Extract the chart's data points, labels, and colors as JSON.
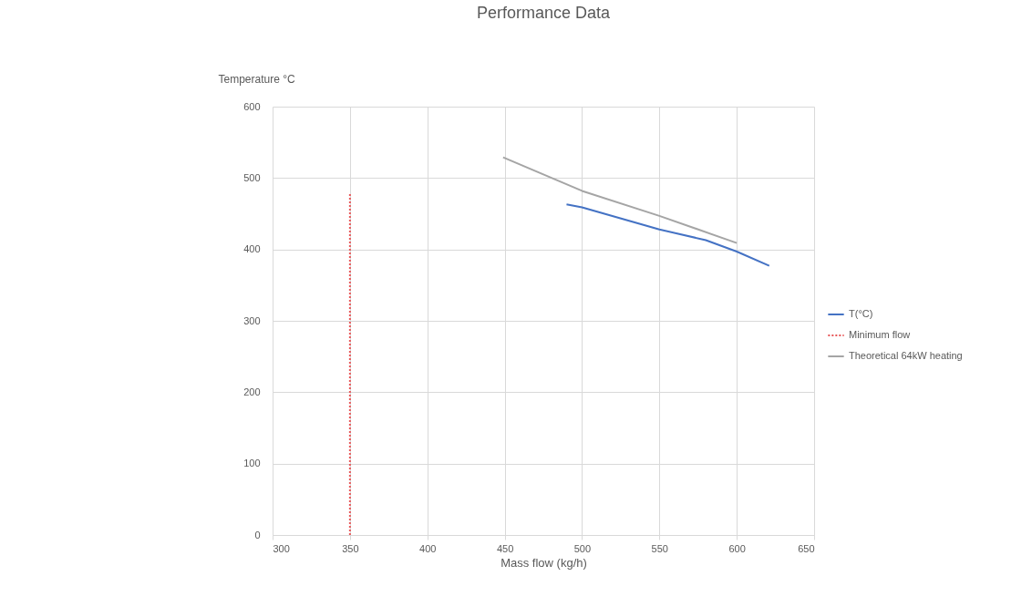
{
  "chart_data": {
    "type": "line",
    "title": "Performance Data",
    "xlabel": "Mass flow (kg/h)",
    "ylabel": "Temperature °C",
    "xlim": [
      300,
      650
    ],
    "xticks": [
      300,
      350,
      400,
      450,
      500,
      550,
      600,
      650
    ],
    "ylim": [
      0,
      600
    ],
    "yticks": [
      0,
      100,
      200,
      300,
      400,
      500,
      600
    ],
    "grid": true,
    "legend": "right",
    "marker": "none",
    "series": [
      {
        "name": "T(°C)",
        "color": "#4472c4",
        "x": [
          490,
          500,
          550,
          580,
          600,
          621
        ],
        "values": [
          463,
          459,
          428,
          413,
          397,
          377
        ]
      },
      {
        "name": "Minimum flow",
        "color": "#e8585a",
        "line_style": "dotted",
        "x": [
          350,
          350
        ],
        "values": [
          0,
          480
        ]
      },
      {
        "name": "Theoretical 64kW heating",
        "color": "#a5a5a5",
        "x": [
          449,
          500,
          550,
          600
        ],
        "values": [
          529,
          482,
          447,
          409
        ]
      }
    ]
  }
}
